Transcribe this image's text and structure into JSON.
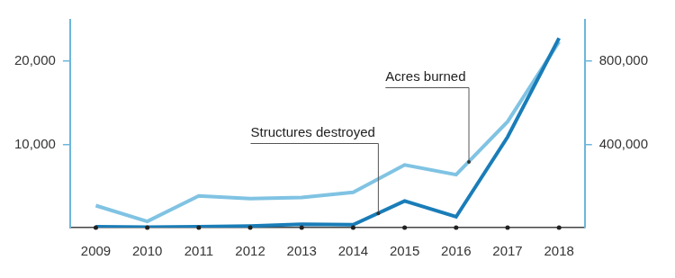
{
  "chart_data": {
    "type": "line",
    "categories": [
      "2009",
      "2010",
      "2011",
      "2012",
      "2013",
      "2014",
      "2015",
      "2016",
      "2017",
      "2018"
    ],
    "series": [
      {
        "name": "Structures destroyed",
        "color": "#1a7db8",
        "values": [
          100,
          50,
          100,
          200,
          400,
          350,
          3200,
          1300,
          10900,
          22800
        ]
      },
      {
        "name": "Acres burned",
        "color": "#80c3e3",
        "axis": "y2",
        "values": [
          106000,
          30000,
          153000,
          140000,
          145000,
          170000,
          302000,
          255000,
          510000,
          894000
        ]
      }
    ],
    "ylim": [
      0,
      25000
    ],
    "yticks": [
      {
        "value": 10000,
        "label": "10,000"
      },
      {
        "value": 20000,
        "label": "20,000"
      }
    ],
    "y2lim": [
      0,
      1000000
    ],
    "y2ticks": [
      {
        "value": 400000,
        "label": "400,000"
      },
      {
        "value": 800000,
        "label": "800,000"
      }
    ],
    "grid": false
  }
}
